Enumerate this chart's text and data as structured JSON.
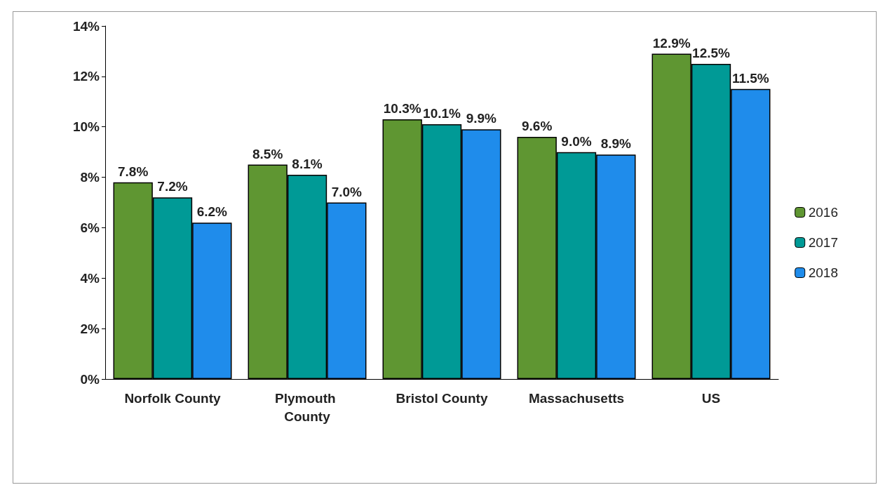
{
  "chart_data": {
    "type": "bar",
    "categories": [
      "Norfolk County",
      "Plymouth County",
      "Bristol County",
      "Massachusetts",
      "US"
    ],
    "series": [
      {
        "name": "2016",
        "color": "#5f9632",
        "values": [
          7.8,
          8.5,
          10.3,
          9.6,
          12.9
        ],
        "value_labels": [
          "7.8%",
          "8.5%",
          "10.3%",
          "9.6%",
          "12.9%"
        ]
      },
      {
        "name": "2017",
        "color": "#009a96",
        "values": [
          7.2,
          8.1,
          10.1,
          9.0,
          12.5
        ],
        "value_labels": [
          "7.2%",
          "8.1%",
          "10.1%",
          "9.0%",
          "12.5%"
        ]
      },
      {
        "name": "2018",
        "color": "#1f8ceb",
        "values": [
          6.2,
          7.0,
          9.9,
          8.9,
          11.5
        ],
        "value_labels": [
          "6.2%",
          "7.0%",
          "9.9%",
          "8.9%",
          "11.5%"
        ]
      }
    ],
    "ylim": [
      0,
      14
    ],
    "yticks": [
      {
        "value": 0,
        "label": "0%"
      },
      {
        "value": 2,
        "label": "2%"
      },
      {
        "value": 4,
        "label": "4%"
      },
      {
        "value": 6,
        "label": "6%"
      },
      {
        "value": 8,
        "label": "8%"
      },
      {
        "value": 10,
        "label": "10%"
      },
      {
        "value": 12,
        "label": "12%"
      },
      {
        "value": 14,
        "label": "14%"
      }
    ],
    "grid": false,
    "legend": "right"
  }
}
